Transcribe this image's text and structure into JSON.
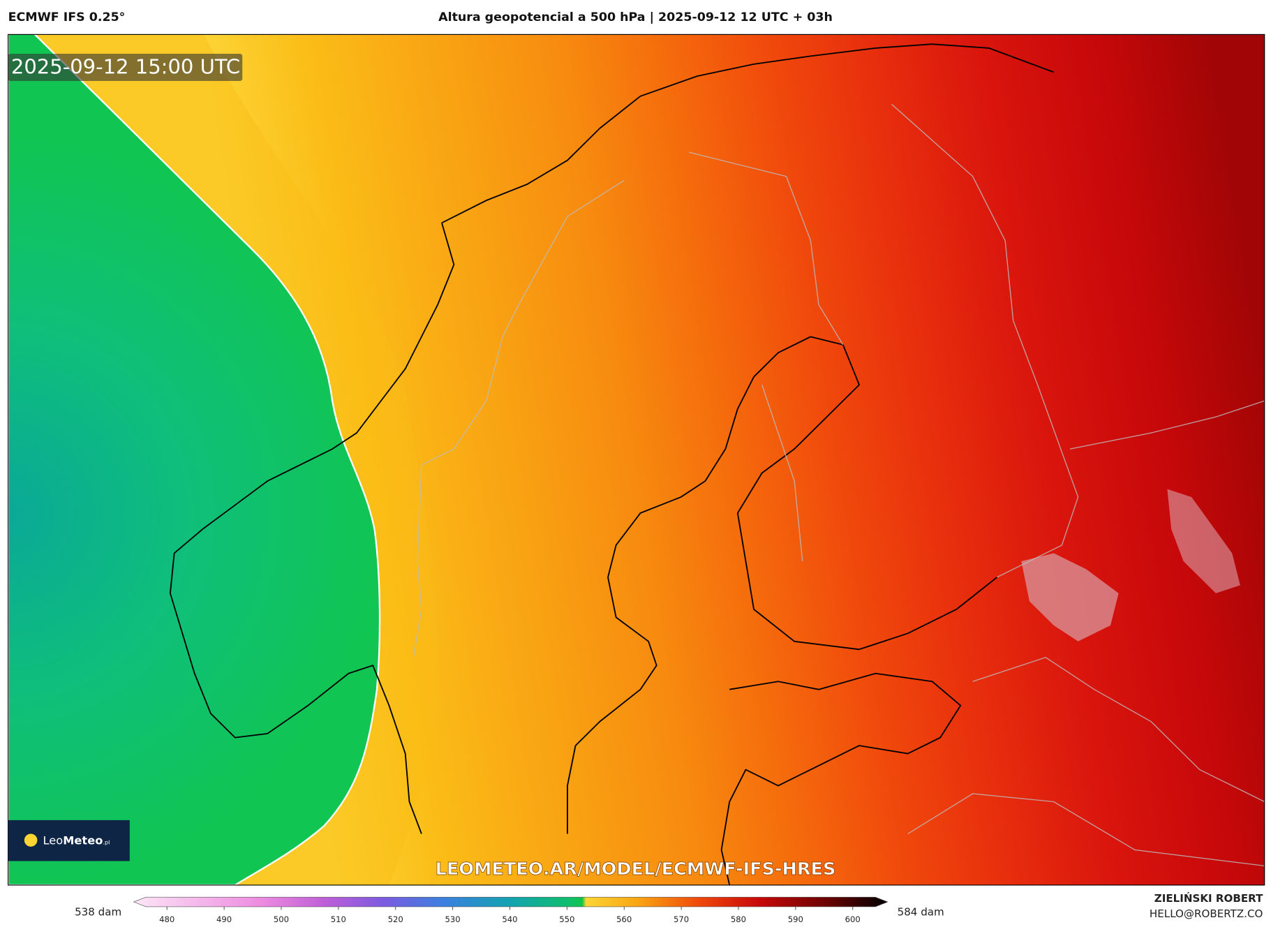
{
  "header": {
    "model": "ECMWF IFS 0.25°",
    "title": "Altura geopotencial a 500 hPa | 2025-09-12 12 UTC + 03h"
  },
  "map": {
    "valid_time": "2025-09-12 15:00 UTC",
    "watermark": "LEOMETEO.AR/MODEL/ECMWF-IFS-HRES",
    "logo": {
      "name_light": "Leo",
      "name_bold": "Meteo",
      "suffix": ".pl"
    }
  },
  "colorbar": {
    "min_label": "538 dam",
    "max_label": "584 dam",
    "ticks": [
      480,
      490,
      500,
      510,
      520,
      530,
      540,
      550,
      560,
      570,
      580,
      590,
      600
    ]
  },
  "footer": {
    "author": "ZIELIŃSKI ROBERT",
    "email": "HELLO@ROBERTZ.CO"
  }
}
